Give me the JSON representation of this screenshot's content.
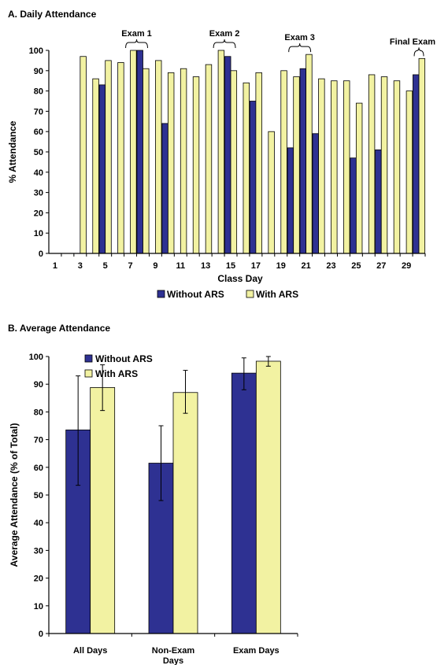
{
  "colors": {
    "without": "#2e3192",
    "with": "#f2f2a2",
    "stroke": "#000000"
  },
  "chart_data": [
    {
      "type": "bar",
      "title": "A.  Daily Attendance",
      "xlabel": "Class Day",
      "ylabel": "% Attendance",
      "ylim": [
        0,
        100
      ],
      "yticks": [
        "0",
        "10",
        "20",
        "30",
        "40",
        "50",
        "60",
        "70",
        "80",
        "90",
        "100"
      ],
      "ytick_values": [
        0,
        10,
        20,
        30,
        40,
        50,
        60,
        70,
        80,
        90,
        100
      ],
      "x": [
        1,
        2,
        3,
        4,
        5,
        6,
        7,
        8,
        9,
        10,
        11,
        12,
        13,
        14,
        15,
        16,
        17,
        18,
        19,
        20,
        21,
        22,
        23,
        24,
        25,
        26,
        27,
        28,
        29,
        30
      ],
      "xtick_labels": [
        "1",
        "",
        "3",
        "",
        "5",
        "",
        "7",
        "",
        "9",
        "",
        "11",
        "",
        "13",
        "",
        "15",
        "",
        "17",
        "",
        "19",
        "",
        "21",
        "",
        "23",
        "",
        "25",
        "",
        "27",
        "",
        "29",
        ""
      ],
      "series": [
        {
          "name": "Without ARS",
          "color": "#2e3192",
          "values": [
            null,
            null,
            null,
            null,
            83,
            null,
            null,
            100,
            null,
            64,
            null,
            null,
            null,
            null,
            97,
            null,
            75,
            null,
            null,
            52,
            91,
            59,
            null,
            null,
            47,
            null,
            51,
            null,
            null,
            88
          ]
        },
        {
          "name": "With ARS",
          "color": "#f2f2a2",
          "values": [
            null,
            null,
            97,
            86,
            95,
            94,
            100,
            91,
            95,
            89,
            91,
            87,
            93,
            100,
            90,
            84,
            89,
            60,
            90,
            87,
            98,
            86,
            85,
            85,
            74,
            88,
            87,
            85,
            80,
            96
          ]
        }
      ],
      "annotations": [
        {
          "text": "Exam 1",
          "days": [
            7,
            8
          ]
        },
        {
          "text": "Exam 2",
          "days": [
            14,
            15
          ]
        },
        {
          "text": "Exam 3",
          "days": [
            20,
            21
          ]
        },
        {
          "text": "Final Exam",
          "days": [
            30
          ]
        }
      ],
      "legend": [
        "Without ARS",
        "With ARS"
      ],
      "legend_position": "bottom"
    },
    {
      "type": "bar",
      "title": "B.  Average Attendance",
      "xlabel": "",
      "ylabel": "Average Attendance (% of Total)",
      "ylim": [
        0,
        100
      ],
      "yticks": [
        "0",
        "10",
        "20",
        "30",
        "40",
        "50",
        "60",
        "70",
        "80",
        "90",
        "100"
      ],
      "ytick_values": [
        0,
        10,
        20,
        30,
        40,
        50,
        60,
        70,
        80,
        90,
        100
      ],
      "categories": [
        "All Days",
        "Non-Exam Days",
        "Exam Days"
      ],
      "category_lines": [
        [
          "All Days"
        ],
        [
          "Non-Exam",
          "Days"
        ],
        [
          "Exam Days"
        ]
      ],
      "series": [
        {
          "name": "Without ARS",
          "color": "#2e3192",
          "values": [
            73.5,
            61.5,
            94
          ],
          "err_low": [
            53.5,
            48,
            88
          ],
          "err_high": [
            93,
            75,
            99.5
          ]
        },
        {
          "name": "With ARS",
          "color": "#f2f2a2",
          "values": [
            88.8,
            87,
            98.3
          ],
          "err_low": [
            80.5,
            79.5,
            96.5
          ],
          "err_high": [
            97,
            95,
            100
          ]
        }
      ],
      "legend": [
        "Without ARS",
        "With ARS"
      ],
      "legend_position": "top-left"
    }
  ]
}
